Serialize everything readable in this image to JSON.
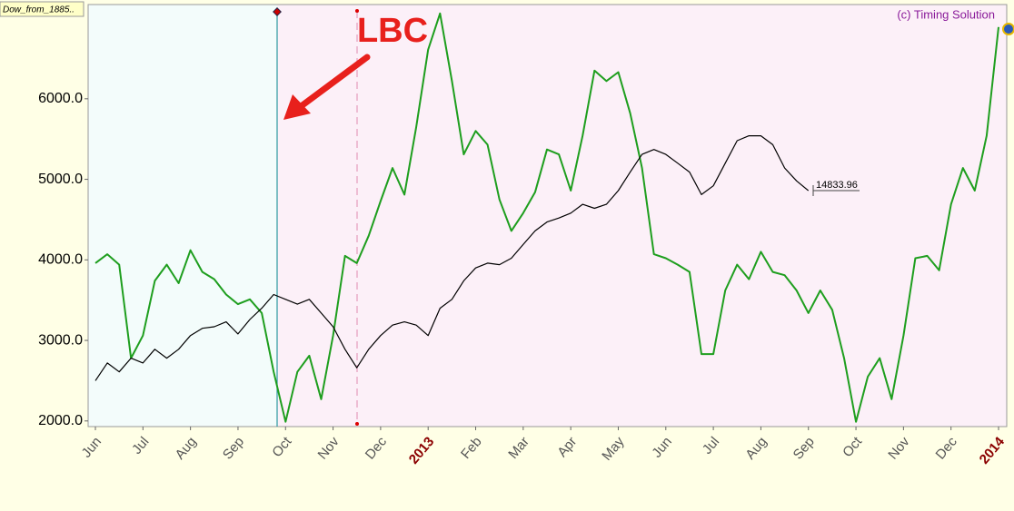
{
  "chart_data": {
    "type": "line",
    "categories": [
      "Jun",
      null,
      null,
      null,
      "Jul",
      null,
      null,
      null,
      "Aug",
      null,
      null,
      null,
      "Sep",
      null,
      null,
      null,
      "Oct",
      null,
      null,
      null,
      "Nov",
      null,
      null,
      null,
      "Dec",
      null,
      null,
      null,
      "2013",
      null,
      null,
      null,
      "Feb",
      null,
      null,
      null,
      "Mar",
      null,
      null,
      null,
      "Apr",
      null,
      null,
      null,
      "May",
      null,
      null,
      null,
      "Jun",
      null,
      null,
      null,
      "Jul",
      null,
      null,
      null,
      "Aug",
      null,
      null,
      null,
      "Sep",
      null,
      null,
      null,
      "Oct",
      null,
      null,
      null,
      "Nov",
      null,
      null,
      null,
      "Dec",
      null,
      null,
      null,
      "2014"
    ],
    "series": [
      {
        "color": "#1e9e1e",
        "values": [
          3960,
          4070,
          3940,
          2780,
          3060,
          3740,
          3940,
          3710,
          4120,
          3850,
          3760,
          3570,
          3450,
          3510,
          3340,
          2610,
          1990,
          2610,
          2810,
          2270,
          3060,
          4050,
          3960,
          4300,
          4730,
          5140,
          4810,
          5650,
          6610,
          7060,
          6220,
          5310,
          5600,
          5430,
          4750,
          4360,
          4580,
          4840,
          5370,
          5310,
          4860,
          5540,
          6350,
          6220,
          6330,
          5820,
          5140,
          4070,
          4020,
          3940,
          3850,
          2830,
          2830,
          3620,
          3940,
          3760,
          4100,
          3850,
          3810,
          3620,
          3340,
          3620,
          3380,
          2780,
          1990,
          2550,
          2780,
          2270,
          3060,
          4020,
          4050,
          3870,
          4690,
          5140,
          4860,
          5540,
          6890
        ]
      },
      {
        "color": "#000000",
        "values": [
          2500,
          2720,
          2610,
          2780,
          2720,
          2890,
          2780,
          2890,
          3060,
          3150,
          3170,
          3230,
          3080,
          3260,
          3400,
          3570,
          3510,
          3450,
          3510,
          3340,
          3170,
          2890,
          2660,
          2890,
          3060,
          3190,
          3230,
          3190,
          3060,
          3400,
          3510,
          3740,
          3900,
          3960,
          3940,
          4020,
          4190,
          4360,
          4470,
          4520,
          4580,
          4690,
          4640,
          4690,
          4860,
          5090,
          5310,
          5370,
          5310,
          5200,
          5090,
          4810,
          4920,
          5200,
          5480,
          5540,
          5540,
          5430,
          5140,
          4980,
          4860,
          null,
          null,
          null,
          null,
          null,
          null,
          null,
          null,
          null,
          null,
          null,
          null,
          null,
          null,
          null,
          null
        ]
      }
    ],
    "ylim": [
      1930,
      7170
    ],
    "yticks": [
      {
        "value": 2000,
        "label": "2000.0"
      },
      {
        "value": 3000,
        "label": "3000.0"
      },
      {
        "value": 4000,
        "label": "4000.0"
      },
      {
        "value": 5000,
        "label": "5000.0"
      },
      {
        "value": 6000,
        "label": "6000.0"
      }
    ],
    "grid": false,
    "annotations": {
      "symbol": "Dow_from_1885..",
      "copyright": "(c) Timing Solution",
      "marker": "LBC",
      "last_price": "14833.96"
    }
  }
}
